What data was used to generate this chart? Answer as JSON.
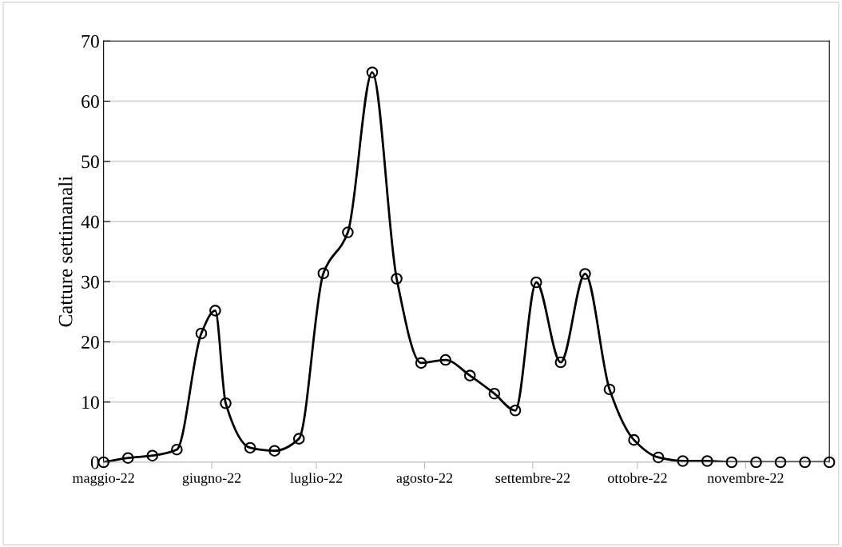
{
  "chart_data": {
    "type": "line",
    "ylabel": "Catture settimanali",
    "x": [
      "2022-05-01",
      "2022-05-08",
      "2022-05-15",
      "2022-05-22",
      "2022-05-29",
      "2022-06-02",
      "2022-06-05",
      "2022-06-12",
      "2022-06-19",
      "2022-06-26",
      "2022-07-03",
      "2022-07-10",
      "2022-07-17",
      "2022-07-24",
      "2022-07-31",
      "2022-08-07",
      "2022-08-14",
      "2022-08-21",
      "2022-08-27",
      "2022-09-02",
      "2022-09-09",
      "2022-09-16",
      "2022-09-23",
      "2022-09-30",
      "2022-10-07",
      "2022-10-14",
      "2022-10-21",
      "2022-10-28",
      "2022-11-04",
      "2022-11-11",
      "2022-11-18",
      "2022-11-25"
    ],
    "series": [
      {
        "color": "#000000",
        "values": [
          0,
          0.7,
          1.1,
          2.1,
          21.4,
          25.2,
          9.8,
          2.4,
          1.9,
          3.9,
          31.4,
          38.2,
          64.8,
          30.5,
          16.5,
          17.0,
          14.4,
          11.4,
          8.6,
          29.9,
          16.6,
          31.3,
          12.1,
          3.7,
          0.8,
          0.2,
          0.2,
          0,
          0,
          0,
          0,
          0
        ]
      }
    ],
    "xlim": [
      "2022-05-01",
      "2022-11-25"
    ],
    "xticks": [
      {
        "value": "2022-05-01",
        "label": "maggio-22"
      },
      {
        "value": "2022-06-01",
        "label": "giugno-22"
      },
      {
        "value": "2022-07-01",
        "label": "luglio-22"
      },
      {
        "value": "2022-08-01",
        "label": "agosto-22"
      },
      {
        "value": "2022-09-01",
        "label": "settembre-22"
      },
      {
        "value": "2022-10-01",
        "label": "ottobre-22"
      },
      {
        "value": "2022-11-01",
        "label": "novembre-22"
      }
    ],
    "ylim": [
      0,
      70
    ],
    "yticks": [
      0,
      10,
      20,
      30,
      40,
      50,
      60,
      70
    ],
    "grid": "y",
    "marker": "circle",
    "line_style": "solid",
    "legend": false
  }
}
